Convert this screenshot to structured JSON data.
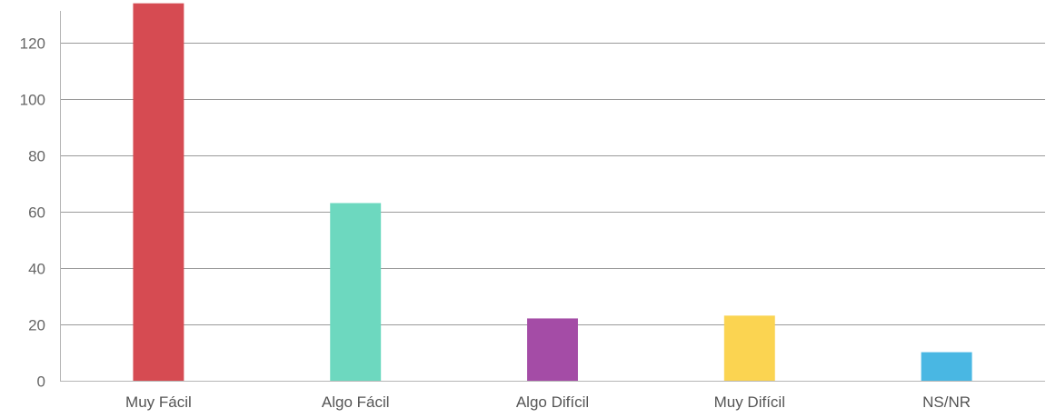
{
  "chart_data": {
    "type": "bar",
    "title": "",
    "xlabel": "",
    "ylabel": "",
    "categories": [
      "Muy Fácil",
      "Algo Fácil",
      "Algo Difícil",
      "Muy Difícil",
      "NS/NR"
    ],
    "values": [
      134,
      63,
      22,
      23,
      10
    ],
    "colors": [
      "#d64b52",
      "#6dd8bf",
      "#a44ca6",
      "#fbd451",
      "#49b7e3"
    ],
    "ylim": [
      0,
      135
    ],
    "yticks": [
      0,
      20,
      40,
      60,
      80,
      100,
      120
    ],
    "grid": true,
    "legend": "none"
  }
}
